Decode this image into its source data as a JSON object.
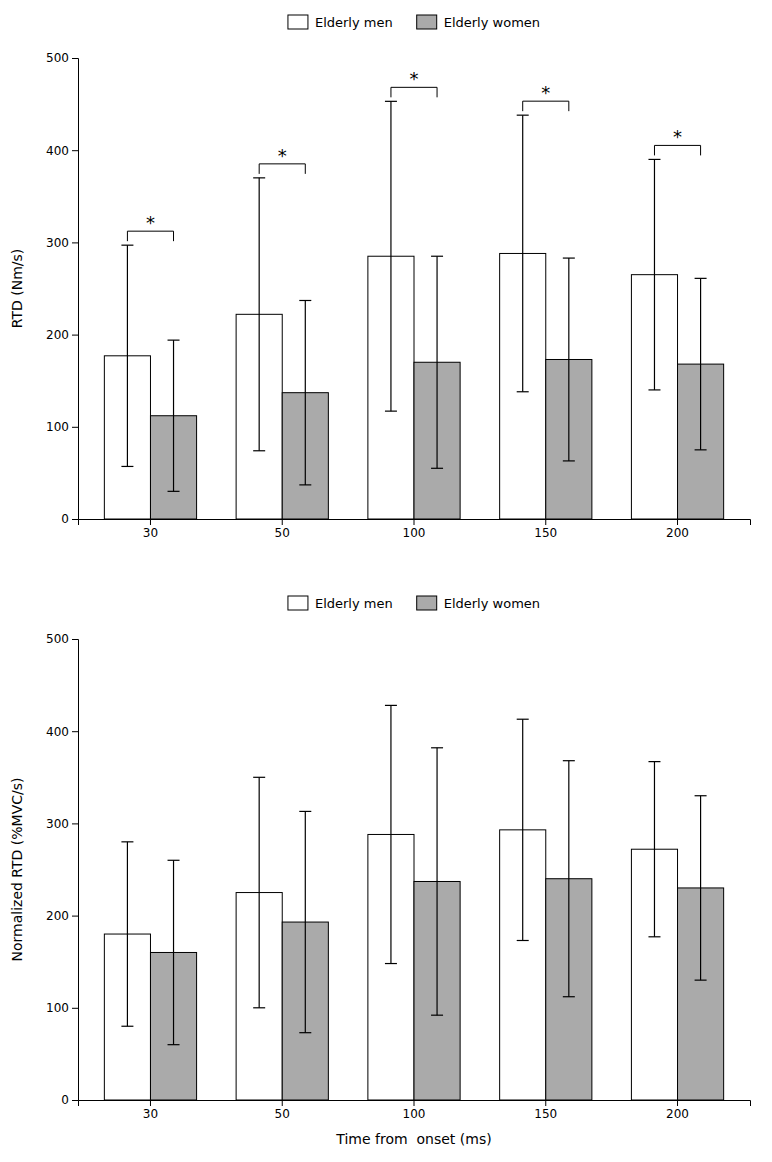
{
  "chart_data": [
    {
      "type": "bar",
      "ylabel": "RTD (Nm/s)",
      "categories": [
        30,
        50,
        100,
        150,
        200
      ],
      "series": [
        {
          "name": "Elderly men",
          "color": "#ffffff",
          "values": [
            177,
            222,
            285,
            288,
            265
          ],
          "errors": [
            120,
            148,
            168,
            150,
            125
          ]
        },
        {
          "name": "Elderly women",
          "color": "#aaaaaa",
          "values": [
            112,
            137,
            170,
            173,
            168
          ],
          "errors": [
            82,
            100,
            115,
            110,
            93
          ]
        }
      ],
      "significance": [
        "*",
        "*",
        "*",
        "*",
        "*"
      ],
      "ylim": [
        0,
        500
      ],
      "yticks": [
        0,
        100,
        200,
        300,
        400,
        500
      ],
      "grid": false,
      "legend": "top"
    },
    {
      "type": "bar",
      "ylabel": "Normalized RTD (%MVC/s)",
      "xlabel": "Time from  onset (ms)",
      "categories": [
        30,
        50,
        100,
        150,
        200
      ],
      "series": [
        {
          "name": "Elderly men",
          "color": "#ffffff",
          "values": [
            180,
            225,
            288,
            293,
            272
          ],
          "errors": [
            100,
            125,
            140,
            120,
            95
          ]
        },
        {
          "name": "Elderly women",
          "color": "#aaaaaa",
          "values": [
            160,
            193,
            237,
            240,
            230
          ],
          "errors": [
            100,
            120,
            145,
            128,
            100
          ]
        }
      ],
      "ylim": [
        0,
        500
      ],
      "yticks": [
        0,
        100,
        200,
        300,
        400,
        500
      ],
      "grid": false,
      "legend": "top"
    }
  ]
}
